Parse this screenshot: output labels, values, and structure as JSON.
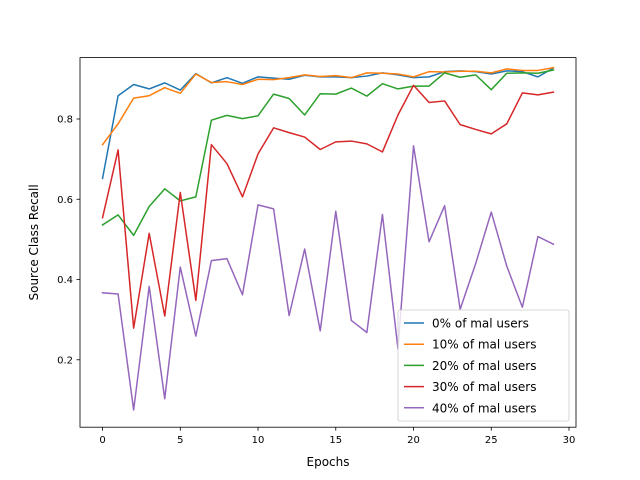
{
  "chart_data": {
    "type": "line",
    "title": "",
    "xlabel": "Epochs",
    "ylabel": "Source Class Recall",
    "xlim": [
      -1.45,
      30.45
    ],
    "ylim": [
      0.032,
      0.953
    ],
    "xticks": [
      0,
      5,
      10,
      15,
      20,
      25,
      30
    ],
    "yticks": [
      0.2,
      0.4,
      0.6,
      0.8
    ],
    "grid": false,
    "legend_position": "lower-right",
    "x": [
      0,
      1,
      2,
      3,
      4,
      5,
      6,
      7,
      8,
      9,
      10,
      11,
      12,
      13,
      14,
      15,
      16,
      17,
      18,
      19,
      20,
      21,
      22,
      23,
      24,
      25,
      26,
      27,
      28,
      29
    ],
    "series": [
      {
        "name": "0% of mal users",
        "color": "#1f77b4",
        "values": [
          0.652,
          0.858,
          0.886,
          0.875,
          0.89,
          0.872,
          0.913,
          0.89,
          0.903,
          0.889,
          0.905,
          0.902,
          0.899,
          0.909,
          0.905,
          0.905,
          0.903,
          0.907,
          0.915,
          0.91,
          0.903,
          0.905,
          0.918,
          0.92,
          0.918,
          0.912,
          0.92,
          0.918,
          0.905,
          0.927
        ]
      },
      {
        "name": "10% of mal users",
        "color": "#ff7f0e",
        "values": [
          0.736,
          0.788,
          0.852,
          0.858,
          0.878,
          0.864,
          0.912,
          0.891,
          0.893,
          0.886,
          0.899,
          0.898,
          0.903,
          0.91,
          0.906,
          0.908,
          0.903,
          0.915,
          0.914,
          0.912,
          0.905,
          0.918,
          0.917,
          0.919,
          0.919,
          0.915,
          0.925,
          0.921,
          0.921,
          0.928
        ]
      },
      {
        "name": "20% of mal users",
        "color": "#2ca02c",
        "values": [
          0.536,
          0.561,
          0.51,
          0.582,
          0.626,
          0.596,
          0.606,
          0.797,
          0.809,
          0.801,
          0.808,
          0.862,
          0.851,
          0.81,
          0.863,
          0.862,
          0.877,
          0.857,
          0.888,
          0.875,
          0.882,
          0.882,
          0.915,
          0.904,
          0.91,
          0.873,
          0.914,
          0.915,
          0.914,
          0.922
        ]
      },
      {
        "name": "30% of mal users",
        "color": "#d62728",
        "values": [
          0.554,
          0.723,
          0.279,
          0.515,
          0.309,
          0.617,
          0.348,
          0.736,
          0.689,
          0.606,
          0.713,
          0.778,
          0.766,
          0.755,
          0.724,
          0.743,
          0.745,
          0.738,
          0.718,
          0.81,
          0.884,
          0.841,
          0.845,
          0.786,
          0.774,
          0.763,
          0.788,
          0.865,
          0.86,
          0.867
        ]
      },
      {
        "name": "40% of mal users",
        "color": "#9467bd",
        "values": [
          0.367,
          0.364,
          0.075,
          0.383,
          0.103,
          0.431,
          0.259,
          0.447,
          0.452,
          0.362,
          0.586,
          0.576,
          0.31,
          0.476,
          0.272,
          0.57,
          0.298,
          0.268,
          0.562,
          0.227,
          0.733,
          0.494,
          0.584,
          0.326,
          0.44,
          0.568,
          0.433,
          0.331,
          0.507,
          0.488
        ]
      }
    ]
  }
}
